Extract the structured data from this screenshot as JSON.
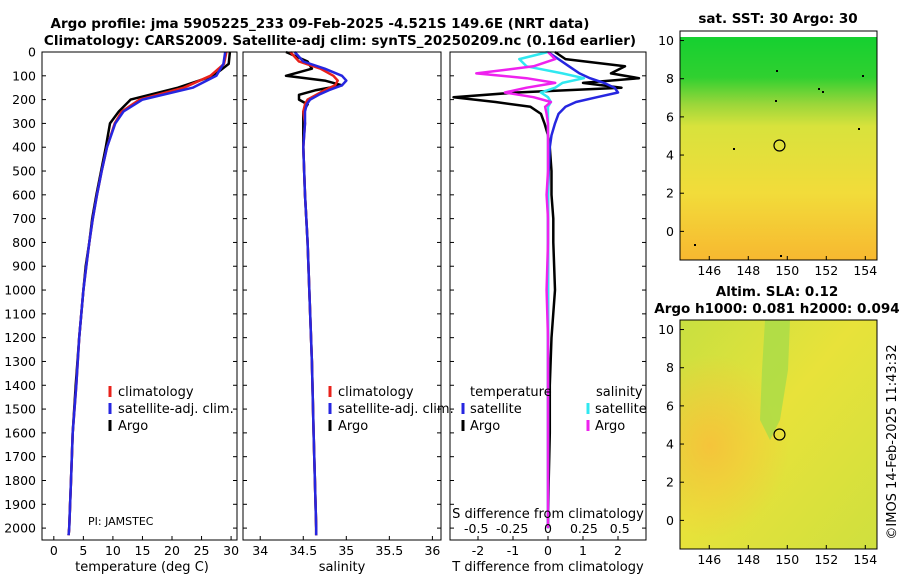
{
  "title_line1": "Argo profile: jma 5905225_233 09-Feb-2025 -4.521S 149.6E (NRT data)",
  "title_line2": "Climatology: CARS2009. Satellite-adj clim: synTS_20250209.nc (0.16d earlier)",
  "pi_label": "PI: JAMSTEC",
  "imos_stamp": "©IMOS 14-Feb-2025 11:43:32",
  "depth_ticks": [
    "0",
    "100",
    "200",
    "300",
    "400",
    "500",
    "600",
    "700",
    "800",
    "900",
    "1000",
    "1100",
    "1200",
    "1300",
    "1400",
    "1500",
    "1600",
    "1700",
    "1800",
    "1900",
    "2000"
  ],
  "colors": {
    "climatology": "#e8211a",
    "satellite": "#2626e0",
    "argo": "#000000",
    "sat_cyan": "#30e8f0",
    "sat_magenta": "#ee22ee"
  },
  "chart_data": [
    {
      "type": "line",
      "id": "temperature",
      "xlabel": "temperature (deg C)",
      "xlim": [
        -2,
        31
      ],
      "ylim": [
        2050,
        0
      ],
      "xticks": [
        0,
        5,
        10,
        15,
        20,
        25,
        30
      ],
      "xtick_labels": [
        "0",
        "5",
        "10",
        "15",
        "20",
        "25",
        "30"
      ],
      "legend": [
        "climatology",
        "satellite-adj. clim.",
        "Argo"
      ],
      "depth": [
        0,
        50,
        100,
        150,
        200,
        250,
        300,
        400,
        500,
        600,
        700,
        800,
        900,
        1000,
        1200,
        1400,
        1600,
        1800,
        2000,
        2030
      ],
      "series": [
        {
          "name": "climatology",
          "values": [
            29.2,
            28.8,
            26.5,
            22.0,
            14.5,
            11.5,
            10.3,
            9.0,
            8.1,
            7.3,
            6.6,
            6.0,
            5.5,
            5.0,
            4.3,
            3.8,
            3.2,
            2.9,
            2.6,
            2.5
          ]
        },
        {
          "name": "satellite-adj. clim.",
          "values": [
            29.0,
            28.7,
            27.5,
            23.5,
            15.0,
            11.8,
            10.4,
            9.0,
            8.1,
            7.3,
            6.6,
            6.0,
            5.5,
            5.0,
            4.3,
            3.8,
            3.2,
            2.9,
            2.6,
            2.5
          ]
        },
        {
          "name": "Argo",
          "values": [
            29.8,
            29.6,
            27.0,
            21.0,
            13.0,
            11.0,
            9.5,
            8.8,
            8.0,
            7.2,
            6.5,
            6.0,
            5.4,
            5.0,
            4.3,
            3.7,
            3.2,
            2.9,
            2.6,
            2.5
          ]
        }
      ]
    },
    {
      "type": "line",
      "id": "salinity",
      "xlabel": "salinity",
      "xlim": [
        33.8,
        36.1
      ],
      "ylim": [
        2050,
        0
      ],
      "xticks": [
        34,
        34.5,
        35,
        35.5,
        36
      ],
      "xtick_labels": [
        "34",
        "34.5",
        "35",
        "35.5",
        "36"
      ],
      "legend": [
        "climatology",
        "satellite-adj. clim.",
        "Argo"
      ],
      "depth": [
        0,
        40,
        70,
        100,
        120,
        140,
        160,
        180,
        200,
        220,
        250,
        300,
        400,
        600,
        800,
        1000,
        1300,
        1600,
        2000,
        2030
      ],
      "series": [
        {
          "name": "climatology",
          "values": [
            34.35,
            34.45,
            34.7,
            34.85,
            34.9,
            34.87,
            34.75,
            34.65,
            34.55,
            34.52,
            34.5,
            34.52,
            34.5,
            34.52,
            34.55,
            34.57,
            34.6,
            34.62,
            34.65,
            34.65
          ]
        },
        {
          "name": "satellite-adj. clim.",
          "values": [
            34.4,
            34.5,
            34.75,
            34.95,
            35.0,
            34.95,
            34.8,
            34.68,
            34.58,
            34.54,
            34.52,
            34.52,
            34.5,
            34.52,
            34.55,
            34.57,
            34.6,
            34.62,
            34.65,
            34.65
          ]
        },
        {
          "name": "Argo",
          "values": [
            34.3,
            34.55,
            34.6,
            34.3,
            34.75,
            34.95,
            34.65,
            34.45,
            34.45,
            34.55,
            34.5,
            34.5,
            34.5,
            34.52,
            34.55,
            34.57,
            34.6,
            34.62,
            34.65,
            34.65
          ]
        }
      ]
    },
    {
      "type": "line",
      "id": "difference",
      "xlabel": "T difference from climatology",
      "xlabel_top": "S difference from climatology",
      "xlim": [
        -2.8,
        2.8
      ],
      "ylim": [
        2050,
        0
      ],
      "xticks": [
        -2,
        -1,
        0,
        1,
        2
      ],
      "xtick_labels": [
        "-2",
        "-1",
        "0",
        "1",
        "2"
      ],
      "s_xtick_labels": [
        "-0.5",
        "-0.25",
        "0",
        "0.25",
        "0.5"
      ],
      "legend_temperature_title": "temperature",
      "legend_salinity_title": "salinity",
      "legend_temperature": [
        "satellite",
        "Argo"
      ],
      "legend_salinity": [
        "satellite",
        "Argo"
      ],
      "depth": [
        0,
        30,
        60,
        90,
        110,
        130,
        150,
        170,
        190,
        210,
        230,
        260,
        300,
        350,
        400,
        500,
        600,
        700,
        800,
        1000,
        1200,
        1400,
        1600,
        1800,
        2000
      ],
      "series": [
        {
          "name": "T satellite",
          "values": [
            0.0,
            0.3,
            0.6,
            0.9,
            1.2,
            1.6,
            1.9,
            2.0,
            1.4,
            0.8,
            0.5,
            0.3,
            0.2,
            0.1,
            0.05,
            0.02,
            0.0,
            0.0,
            0.0,
            0.0,
            0.0,
            0.0,
            0.0,
            0.0,
            0.0
          ]
        },
        {
          "name": "T Argo",
          "values": [
            0.2,
            0.5,
            2.2,
            1.8,
            2.6,
            1.0,
            2.1,
            -0.9,
            -2.7,
            -1.5,
            -0.5,
            -0.2,
            -0.1,
            0.0,
            0.05,
            0.1,
            0.1,
            0.15,
            0.15,
            0.2,
            0.1,
            0.05,
            0.05,
            0.02,
            0.0
          ]
        },
        {
          "name": "S satellite",
          "values": [
            0.0,
            -0.2,
            -0.15,
            0.1,
            0.25,
            0.1,
            0.05,
            -0.05,
            0.0,
            0.02,
            0.0,
            0.0,
            0.0,
            0.0,
            0.0,
            0.0,
            0.0,
            0.0,
            0.0,
            0.0,
            0.0,
            0.0,
            0.0,
            0.0,
            0.0
          ]
        },
        {
          "name": "S Argo",
          "values": [
            0.0,
            0.05,
            -0.1,
            -0.5,
            -0.15,
            0.05,
            -0.15,
            -0.3,
            -0.1,
            0.02,
            -0.02,
            -0.01,
            0.0,
            0.0,
            0.0,
            0.0,
            -0.01,
            0.0,
            0.0,
            -0.01,
            0.0,
            0.0,
            0.0,
            0.0,
            0.0
          ]
        }
      ]
    },
    {
      "type": "heatmap",
      "id": "sst",
      "title": "sat. SST: 30 Argo: 30",
      "xlim": [
        144.5,
        154.6
      ],
      "ylim": [
        -1.5,
        10.5
      ],
      "xticks": [
        146,
        148,
        150,
        152,
        154
      ],
      "xtick_labels": [
        "146",
        "148",
        "150",
        "152",
        "154"
      ],
      "yticks": [
        0,
        2,
        4,
        6,
        8,
        10
      ],
      "ytick_labels": [
        "0",
        "2",
        "4",
        "6",
        "8",
        "10"
      ],
      "marker": [
        149.6,
        4.5
      ]
    },
    {
      "type": "heatmap",
      "id": "sla",
      "title_line1": "Altim. SLA: 0.12",
      "title_line2": "Argo h1000: 0.081 h2000: 0.094",
      "xlim": [
        144.5,
        154.6
      ],
      "ylim": [
        -1.5,
        10.5
      ],
      "xticks": [
        146,
        148,
        150,
        152,
        154
      ],
      "xtick_labels": [
        "146",
        "148",
        "150",
        "152",
        "154"
      ],
      "yticks": [
        0,
        2,
        4,
        6,
        8,
        10
      ],
      "ytick_labels": [
        "0",
        "2",
        "4",
        "6",
        "8",
        "10"
      ],
      "marker": [
        149.6,
        4.5
      ]
    }
  ]
}
